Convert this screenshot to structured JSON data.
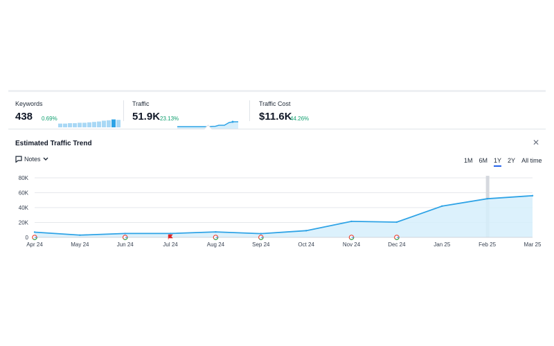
{
  "metrics": {
    "keywords": {
      "label": "Keywords",
      "value": "438",
      "change": "0.69%",
      "bars": [
        0.45,
        0.45,
        0.5,
        0.5,
        0.55,
        0.55,
        0.6,
        0.65,
        0.7,
        0.8,
        0.85,
        0.95,
        0.9
      ]
    },
    "traffic": {
      "label": "Traffic",
      "value": "51.9K",
      "change": "23.13%"
    },
    "traffic_cost": {
      "label": "Traffic Cost",
      "value": "$11.6K",
      "change": "44.26%"
    }
  },
  "trend": {
    "title": "Estimated Traffic Trend",
    "notes_label": "Notes",
    "ranges": [
      "1M",
      "6M",
      "1Y",
      "2Y",
      "All time"
    ],
    "active_range": "1Y"
  },
  "colors": {
    "line": "#2ea3e6",
    "fill": "#d6eefb",
    "positive": "#0e9f6e",
    "accent": "#2563eb"
  },
  "chart_data": {
    "type": "area",
    "x": [
      "Apr 24",
      "May 24",
      "Jun 24",
      "Jul 24",
      "Aug 24",
      "Sep 24",
      "Oct 24",
      "Nov 24",
      "Dec 24",
      "Jan 25",
      "Feb 25",
      "Mar 25"
    ],
    "series": [
      {
        "values": [
          7000,
          3000,
          5200,
          5200,
          7300,
          5000,
          9000,
          21500,
          20500,
          42000,
          51900,
          56000
        ]
      }
    ],
    "y_ticks": [
      "0",
      "20K",
      "40K",
      "60K",
      "80K"
    ],
    "ylim": [
      0,
      80000
    ],
    "grid": true,
    "markers": [
      {
        "x": "Apr 24",
        "icon": "google-icon"
      },
      {
        "x": "Jun 24",
        "icon": "google-icon"
      },
      {
        "x": "Jul 24",
        "icon": "flag-icon"
      },
      {
        "x": "Aug 24",
        "icon": "google-icon"
      },
      {
        "x": "Sep 24",
        "icon": "google-icon"
      },
      {
        "x": "Nov 24",
        "icon": "google-icon"
      },
      {
        "x": "Dec 24",
        "icon": "google-icon"
      }
    ],
    "highlight_x": "Feb 25"
  }
}
